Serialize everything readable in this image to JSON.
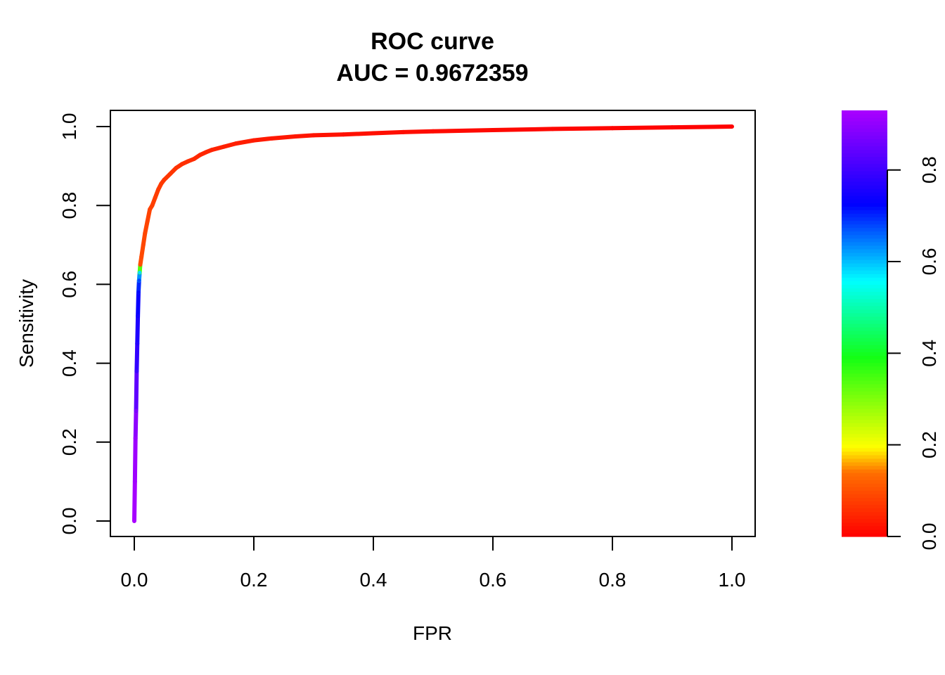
{
  "chart_data": {
    "type": "line",
    "title": "ROC curve",
    "subtitle": "AUC = 0.9672359",
    "xlabel": "FPR",
    "ylabel": "Sensitivity",
    "xlim": [
      0,
      1
    ],
    "ylim": [
      0,
      1
    ],
    "x_ticks": [
      "0.0",
      "0.2",
      "0.4",
      "0.6",
      "0.8",
      "1.0"
    ],
    "y_ticks": [
      "0.0",
      "0.2",
      "0.4",
      "0.6",
      "0.8",
      "1.0"
    ],
    "grid": false,
    "legend": "none",
    "series": [
      {
        "x": [
          0,
          0.001,
          0.002,
          0.003,
          0.004,
          0.005,
          0.006,
          0.007,
          0.008,
          0.009,
          0.01,
          0.012,
          0.015,
          0.018,
          0.022,
          0.026,
          0.03,
          0.035,
          0.04,
          0.045,
          0.05,
          0.06,
          0.07,
          0.08,
          0.09,
          0.1,
          0.11,
          0.12,
          0.13,
          0.15,
          0.17,
          0.2,
          0.23,
          0.27,
          0.3,
          0.35,
          0.4,
          0.45,
          0.5,
          0.6,
          0.7,
          0.8,
          0.9,
          1.0
        ],
        "y": [
          0,
          0.1,
          0.21,
          0.28,
          0.38,
          0.45,
          0.52,
          0.58,
          0.61,
          0.63,
          0.65,
          0.67,
          0.7,
          0.73,
          0.76,
          0.79,
          0.8,
          0.82,
          0.84,
          0.855,
          0.865,
          0.88,
          0.895,
          0.905,
          0.912,
          0.918,
          0.928,
          0.935,
          0.941,
          0.949,
          0.957,
          0.965,
          0.97,
          0.975,
          0.978,
          0.98,
          0.983,
          0.986,
          0.988,
          0.991,
          0.994,
          0.996,
          0.998,
          1.0
        ],
        "threshold": [
          0.93,
          0.92,
          0.91,
          0.88,
          0.8,
          0.77,
          0.75,
          0.72,
          0.68,
          0.58,
          0.1,
          0.095,
          0.09,
          0.09,
          0.085,
          0.085,
          0.08,
          0.08,
          0.075,
          0.075,
          0.07,
          0.07,
          0.065,
          0.06,
          0.06,
          0.055,
          0.05,
          0.05,
          0.045,
          0.04,
          0.04,
          0.035,
          0.03,
          0.03,
          0.025,
          0.02,
          0.02,
          0.015,
          0.015,
          0.01,
          0.01,
          0.005,
          0.005,
          0
        ]
      }
    ],
    "colorbar": {
      "range": [
        0,
        0.93
      ],
      "ticks": [
        "0.0",
        "0.2",
        "0.4",
        "0.6",
        "0.8"
      ],
      "tick_values": [
        0,
        0.2,
        0.4,
        0.6,
        0.8
      ]
    }
  }
}
